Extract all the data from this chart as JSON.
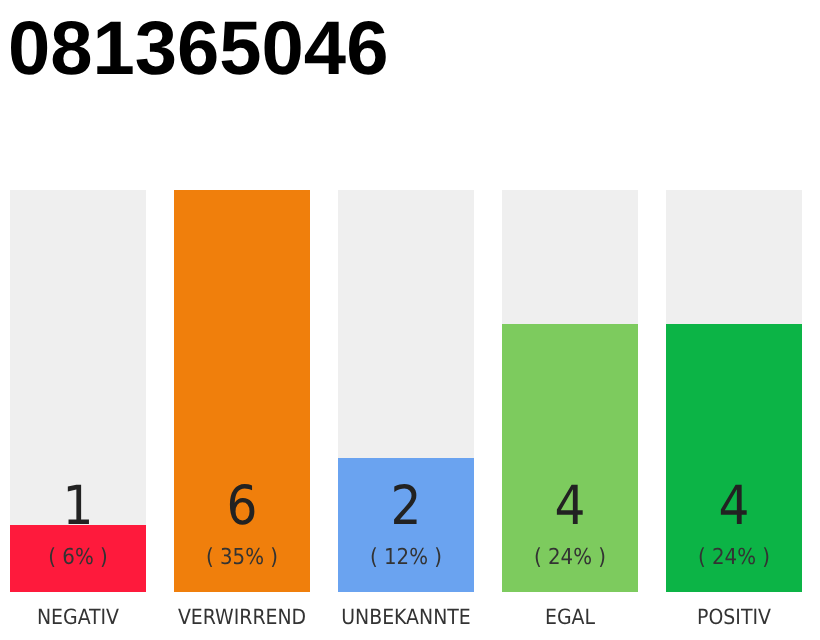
{
  "chart_data": {
    "type": "bar",
    "title": "081365046",
    "categories": [
      "NEGATIV",
      "VERWIRREND",
      "UNBEKANNTE",
      "EGAL",
      "POSITIV"
    ],
    "values": [
      1,
      6,
      2,
      4,
      4
    ],
    "colors": [
      "#fe1a3c",
      "#f07f0c",
      "#6aa3f0",
      "#7dcb5e",
      "#0cb446"
    ],
    "ylim": [
      0,
      6
    ],
    "tick_labels": "x",
    "data_labels": true,
    "annotations": [
      "( 6% )",
      "( 35% )",
      "( 12% )",
      "( 24% )",
      "( 24% )"
    ]
  }
}
